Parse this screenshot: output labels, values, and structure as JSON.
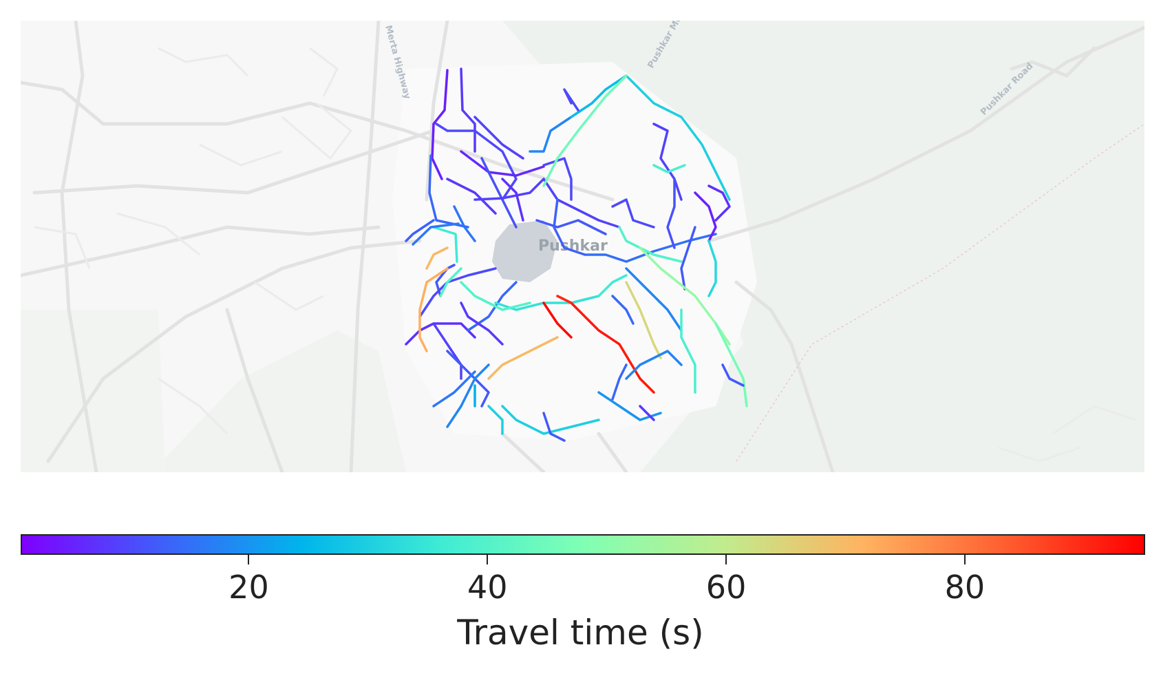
{
  "map": {
    "place_label": "Pushkar",
    "road_labels": [
      "Merta Highway",
      "Pushkar Mer",
      "Pushkar Road"
    ]
  },
  "colorbar": {
    "label": "Travel time (s)",
    "min": 1,
    "max": 95,
    "ticks": [
      {
        "value": 20,
        "label": "20"
      },
      {
        "value": 40,
        "label": "40"
      },
      {
        "value": 60,
        "label": "60"
      },
      {
        "value": 80,
        "label": "80"
      }
    ],
    "colormap": "rainbow",
    "stops": [
      "#7f00ff",
      "#3f5ffa",
      "#00b5eb",
      "#40ecd4",
      "#80ffb4",
      "#c0ec8e",
      "#ffb360",
      "#ff5f30",
      "#ff0000"
    ]
  },
  "colors": {
    "background_map": "#f7f7f7",
    "roads": "#e3e3e3",
    "parks": "#eef2ee",
    "lake": "#cdd3d8"
  }
}
